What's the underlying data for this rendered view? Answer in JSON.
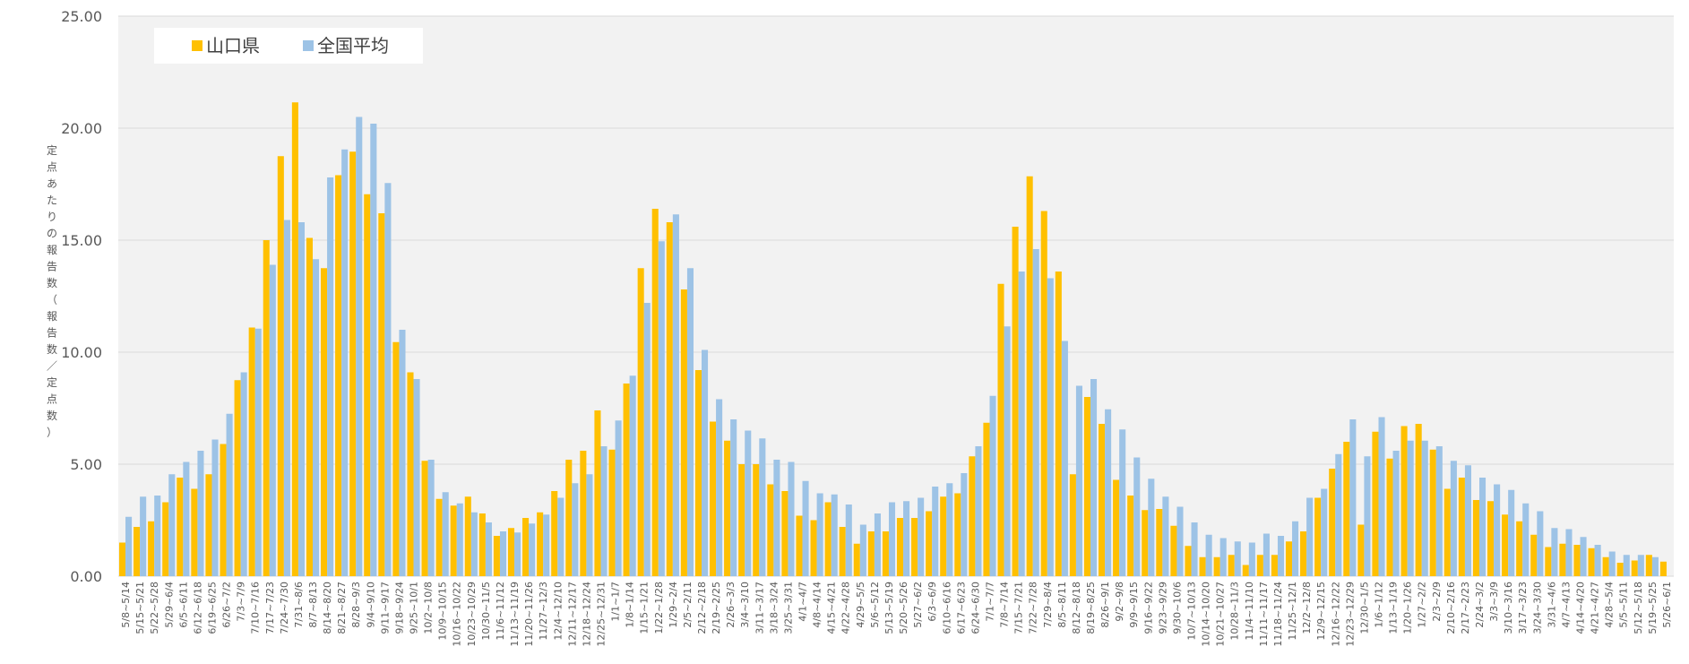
{
  "chart_data": {
    "type": "bar",
    "ylabel": "定点あたりの報告数（報告数／定点数）",
    "ylim": [
      0,
      25
    ],
    "yticks": [
      "0.00",
      "5.00",
      "10.00",
      "15.00",
      "20.00",
      "25.00"
    ],
    "legend_position": "top-left",
    "grid": true,
    "colors": {
      "plot_bg": "#f2f2f2",
      "grid": "#d9d9d9",
      "yamaguchi": "#ffc000",
      "national": "#9dc3e6"
    },
    "categories": [
      "5/8~5/14",
      "5/15~5/21",
      "5/22~5/28",
      "5/29~6/4",
      "6/5~6/11",
      "6/12~6/18",
      "6/19~6/25",
      "6/26~7/2",
      "7/3~7/9",
      "7/10~7/16",
      "7/17~7/23",
      "7/24~7/30",
      "7/31~8/6",
      "8/7~8/13",
      "8/14~8/20",
      "8/21~8/27",
      "8/28~9/3",
      "9/4~9/10",
      "9/11~9/17",
      "9/18~9/24",
      "9/25~10/1",
      "10/2~10/8",
      "10/9~10/15",
      "10/16~10/22",
      "10/23~10/29",
      "10/30~11/5",
      "11/6~11/12",
      "11/13~11/19",
      "11/20~11/26",
      "11/27~12/3",
      "12/4~12/10",
      "12/11~12/17",
      "12/18~12/24",
      "12/25~12/31",
      "1/1~1/7",
      "1/8~1/14",
      "1/15~1/21",
      "1/22~1/28",
      "1/29~2/4",
      "2/5~2/11",
      "2/12~2/18",
      "2/19~2/25",
      "2/26~3/3",
      "3/4~3/10",
      "3/11~3/17",
      "3/18~3/24",
      "3/25~3/31",
      "4/1~4/7",
      "4/8~4/14",
      "4/15~4/21",
      "4/22~4/28",
      "4/29~5/5",
      "5/6~5/12",
      "5/13~5/19",
      "5/20~5/26",
      "5/27~6/2",
      "6/3~6/9",
      "6/10~6/16",
      "6/17~6/23",
      "6/24~6/30",
      "7/1~7/7",
      "7/8~7/14",
      "7/15~7/21",
      "7/22~7/28",
      "7/29~8/4",
      "8/5~8/11",
      "8/12~8/18",
      "8/19~8/25",
      "8/26~9/1",
      "9/2~9/8",
      "9/9~9/15",
      "9/16~9/22",
      "9/23~9/29",
      "9/30~10/6",
      "10/7~10/13",
      "10/14~10/20",
      "10/21~10/27",
      "10/28~11/3",
      "11/4~11/10",
      "11/11~11/17",
      "11/18~11/24",
      "11/25~12/1",
      "12/2~12/8",
      "12/9~12/15",
      "12/16~12/22",
      "12/23~12/29",
      "12/30~1/5",
      "1/6~1/12",
      "1/13~1/19",
      "1/20~1/26",
      "1/27~2/2",
      "2/3~2/9",
      "2/10~2/16",
      "2/17~2/23",
      "2/24~3/2",
      "3/3~3/9",
      "3/10~3/16",
      "3/17~3/23",
      "3/24~3/30",
      "3/31~4/6",
      "4/7~4/13",
      "4/14~4/20",
      "4/21~4/27",
      "4/28~5/4",
      "5/5~5/11",
      "5/12~5/18",
      "5/19~5/25",
      "5/26~6/1"
    ],
    "series": [
      {
        "name": "山口県",
        "color": "#ffc000",
        "values": [
          1.5,
          2.2,
          2.45,
          3.3,
          4.4,
          3.9,
          4.55,
          5.9,
          8.75,
          11.1,
          15.0,
          18.75,
          21.15,
          15.1,
          13.75,
          17.9,
          18.95,
          17.05,
          16.2,
          10.45,
          9.1,
          5.15,
          3.45,
          3.15,
          3.55,
          2.8,
          1.8,
          2.15,
          2.6,
          2.85,
          3.8,
          5.2,
          5.6,
          7.4,
          5.65,
          8.6,
          13.75,
          16.4,
          15.8,
          12.8,
          9.2,
          6.9,
          6.05,
          5.0,
          5.0,
          4.1,
          3.8,
          2.7,
          2.5,
          3.3,
          2.2,
          1.45,
          2.0,
          2.0,
          2.6,
          2.6,
          2.9,
          3.55,
          3.7,
          5.35,
          6.85,
          13.05,
          15.6,
          17.85,
          16.3,
          13.6,
          4.55,
          8.0,
          6.8,
          4.3,
          3.6,
          2.95,
          3.0,
          2.25,
          1.35,
          0.85,
          0.85,
          0.95,
          0.5,
          0.95,
          0.95,
          1.55,
          2.0,
          3.5,
          4.8,
          6.0,
          2.3,
          6.45,
          5.25,
          6.7,
          6.8,
          5.65,
          3.9,
          4.4,
          3.4,
          3.35,
          2.75,
          2.45,
          1.85,
          1.3,
          1.45,
          1.4,
          1.25,
          0.85,
          0.6,
          0.7,
          0.95,
          0.65
        ]
      },
      {
        "name": "全国平均",
        "color": "#9dc3e6",
        "values": [
          2.65,
          3.55,
          3.6,
          4.55,
          5.1,
          5.6,
          6.1,
          7.25,
          9.1,
          11.05,
          13.9,
          15.9,
          15.8,
          14.15,
          17.8,
          19.05,
          20.5,
          20.2,
          17.55,
          11.0,
          8.8,
          5.2,
          3.75,
          3.25,
          2.85,
          2.4,
          2.0,
          1.95,
          2.35,
          2.75,
          3.5,
          4.15,
          4.55,
          5.8,
          6.95,
          8.95,
          12.2,
          14.95,
          16.15,
          13.75,
          10.1,
          7.9,
          7.0,
          6.5,
          6.15,
          5.2,
          5.1,
          4.25,
          3.7,
          3.65,
          3.2,
          2.3,
          2.8,
          3.3,
          3.35,
          3.5,
          4.0,
          4.15,
          4.6,
          5.8,
          8.05,
          11.15,
          13.6,
          14.6,
          13.3,
          10.5,
          8.5,
          8.8,
          7.45,
          6.55,
          5.3,
          4.35,
          3.55,
          3.1,
          2.4,
          1.85,
          1.7,
          1.55,
          1.5,
          1.9,
          1.8,
          2.45,
          3.5,
          3.9,
          5.45,
          7.0,
          5.35,
          7.1,
          5.6,
          6.05,
          6.05,
          5.8,
          5.15,
          4.95,
          4.4,
          4.1,
          3.85,
          3.25,
          2.9,
          2.15,
          2.1,
          1.75,
          1.4,
          1.1,
          0.95,
          0.95,
          0.85,
          0
        ]
      }
    ]
  }
}
